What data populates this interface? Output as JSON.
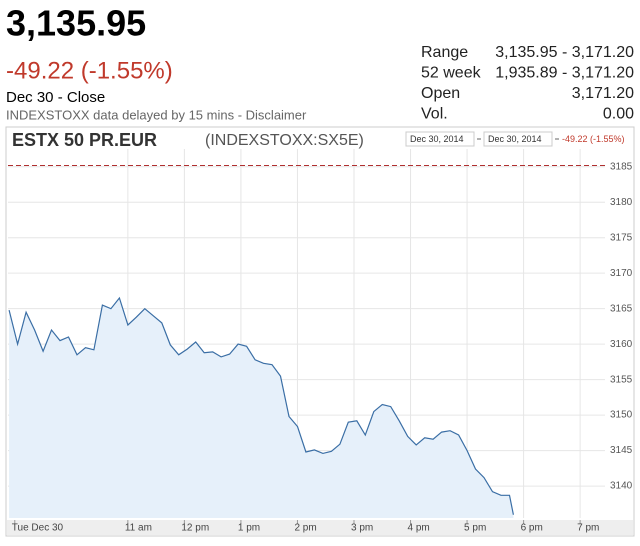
{
  "quote": {
    "price": "3,135.95",
    "change": "-49.22 (-1.55%)",
    "status": "Dec 30 - Close",
    "note": "INDEXSTOXX data delayed by 15 mins - Disclaimer",
    "stats": [
      {
        "label": "Range",
        "value": "3,135.95 - 3,171.20"
      },
      {
        "label": "52 week",
        "value": "1,935.89 - 3,171.20"
      },
      {
        "label": "Open",
        "value": "3,171.20"
      },
      {
        "label": "Vol.",
        "value": "0.00"
      }
    ]
  },
  "chart_data": {
    "type": "area",
    "title": "ESTX 50 PR.EUR",
    "subtitle": "(INDEXSTOXX:SX5E)",
    "range_start": "Dec 30, 2014",
    "range_end": "Dec 30, 2014",
    "range_change": "-49.22 (-1.55%)",
    "color": "#3a6ea5",
    "fill": "#e6f0fa",
    "reference_line": 3185.17,
    "reference_color": "#b03030",
    "grid": true,
    "x": [
      8.9,
      9.05,
      9.2,
      9.35,
      9.5,
      9.65,
      9.8,
      9.95,
      10.1,
      10.25,
      10.4,
      10.55,
      10.7,
      10.85,
      11,
      11.15,
      11.3,
      11.45,
      11.6,
      11.75,
      11.9,
      12.05,
      12.2,
      12.35,
      12.5,
      12.65,
      12.8,
      12.95,
      13.1,
      13.25,
      13.4,
      13.55,
      13.7,
      13.85,
      14,
      14.15,
      14.3,
      14.45,
      14.6,
      14.75,
      14.9,
      15.05,
      15.2,
      15.35,
      15.5,
      15.65,
      15.8,
      15.95,
      16.1,
      16.25,
      16.4,
      16.55,
      16.7,
      16.85,
      17,
      17.15,
      17.3,
      17.45,
      17.6,
      17.75,
      17.82
    ],
    "values": [
      3164.8,
      3160,
      3164.5,
      3162,
      3159,
      3162,
      3160.5,
      3161,
      3158.5,
      3159.5,
      3159.2,
      3165.5,
      3165,
      3166.5,
      3162.7,
      3163.8,
      3165,
      3164,
      3163,
      3159.9,
      3158.5,
      3159.3,
      3160.3,
      3158.8,
      3158.9,
      3158.2,
      3158.6,
      3160,
      3159.7,
      3157.8,
      3157.3,
      3157.1,
      3155.5,
      3149.8,
      3148.4,
      3144.8,
      3145.1,
      3144.6,
      3144.9,
      3145.9,
      3149,
      3149.2,
      3147.2,
      3150.5,
      3151.5,
      3151.2,
      3149.2,
      3147,
      3145.8,
      3146.8,
      3146.6,
      3147.6,
      3147.8,
      3147.2,
      3145,
      3142.4,
      3141.2,
      3139.2,
      3138.7,
      3138.7,
      3135.95
    ],
    "xlim": [
      8.88,
      19.44
    ],
    "ylim": [
      3135.5,
      3187.5
    ],
    "yticks": [
      3140,
      3145,
      3150,
      3155,
      3160,
      3165,
      3170,
      3175,
      3180,
      3185
    ],
    "xticks": [
      {
        "value": 9,
        "label": "Tue Dec 30"
      },
      {
        "value": 11,
        "label": "11 am"
      },
      {
        "value": 12,
        "label": "12 pm"
      },
      {
        "value": 13,
        "label": "1 pm"
      },
      {
        "value": 14,
        "label": "2 pm"
      },
      {
        "value": 15,
        "label": "3 pm"
      },
      {
        "value": 16,
        "label": "4 pm"
      },
      {
        "value": 17,
        "label": "5 pm"
      },
      {
        "value": 18,
        "label": "6 pm"
      },
      {
        "value": 19,
        "label": "7 pm"
      }
    ]
  }
}
